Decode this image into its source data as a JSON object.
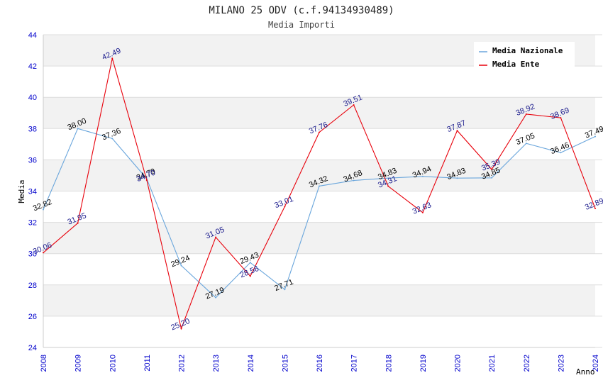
{
  "chart_data": {
    "type": "line",
    "title": "MILANO 25 ODV (c.f.94134930489)",
    "subtitle": "Media Importi",
    "xlabel": "Anno",
    "ylabel": "Media",
    "x": [
      "2008",
      "2009",
      "2010",
      "2011",
      "2012",
      "2013",
      "2014",
      "2015",
      "2016",
      "2017",
      "2018",
      "2019",
      "2020",
      "2021",
      "2022",
      "2023",
      "2024"
    ],
    "ylim": [
      24,
      44
    ],
    "yticks": [
      "24",
      "26",
      "28",
      "30",
      "32",
      "34",
      "36",
      "38",
      "40",
      "42",
      "44"
    ],
    "grid": true,
    "legend_position": "top-right",
    "series": [
      {
        "name": "Media Nazionale",
        "color": "#6aa6dc",
        "label_color": "#000000",
        "values": [
          32.82,
          38.0,
          37.36,
          34.79,
          29.24,
          27.19,
          29.43,
          27.71,
          34.32,
          34.68,
          34.83,
          34.94,
          34.83,
          34.85,
          37.05,
          36.46,
          37.49
        ],
        "labels": [
          "32.82",
          "38.00",
          "37.36",
          "34.79",
          "29.24",
          "27.19",
          "29.43",
          "27.71",
          "34.32",
          "34.68",
          "34.83",
          "34.94",
          "34.83",
          "34.85",
          "37.05",
          "36.46",
          "37.49"
        ]
      },
      {
        "name": "Media Ente",
        "color": "#e8000b",
        "label_color": "#1a1a8c",
        "values": [
          30.06,
          31.95,
          42.49,
          34.7,
          25.2,
          31.05,
          28.56,
          33.01,
          37.76,
          39.51,
          34.31,
          32.63,
          37.87,
          35.39,
          38.92,
          38.69,
          32.89
        ],
        "labels": [
          "30.06",
          "31.95",
          "42.49",
          "34.70",
          "25.20",
          "31.05",
          "28.56",
          "33.01",
          "37.76",
          "39.51",
          "34.31",
          "32.63",
          "37.87",
          "35.39",
          "38.92",
          "38.69",
          "32.89"
        ]
      }
    ]
  }
}
